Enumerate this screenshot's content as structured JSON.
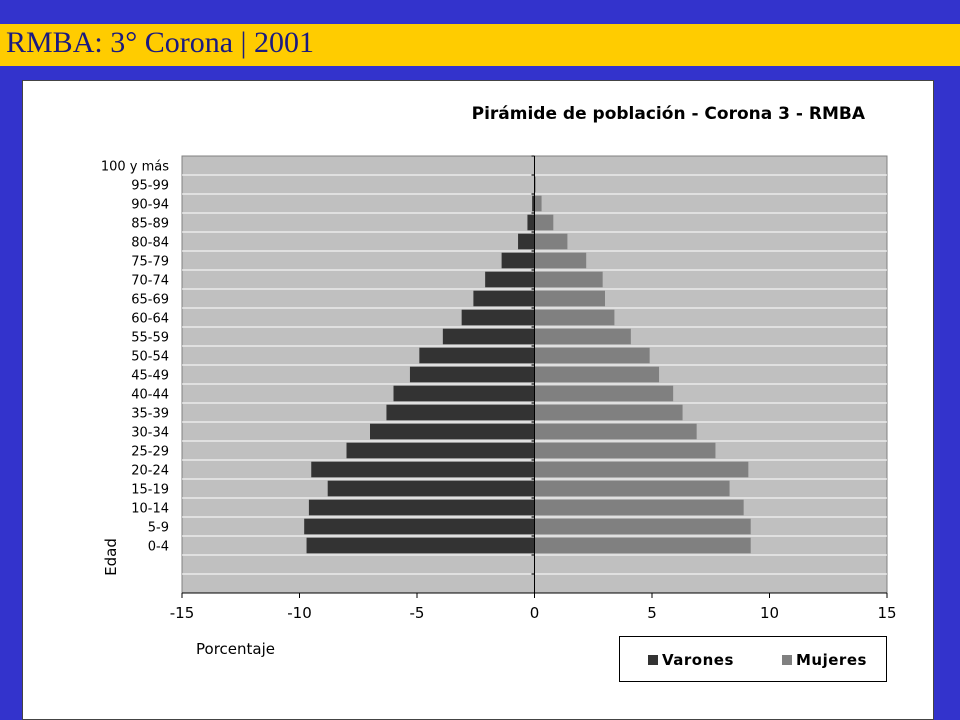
{
  "slide": {
    "title": "RMBA: 3° Corona | 2001"
  },
  "chart_data": {
    "type": "bar",
    "orientation": "horizontal",
    "title": "Pirámide de población - Corona 3 - RMBA",
    "xlabel": "Porcentaje",
    "ylabel": "Edad",
    "xlim": [
      -15,
      15
    ],
    "xticks": [
      -15,
      -10,
      -5,
      0,
      5,
      10,
      15
    ],
    "grid": true,
    "legend": "bottom-right",
    "categories": [
      "0-4",
      "5-9",
      "10-14",
      "15-19",
      "20-24",
      "25-29",
      "30-34",
      "35-39",
      "40-44",
      "45-49",
      "50-54",
      "55-59",
      "60-64",
      "65-69",
      "70-74",
      "75-79",
      "80-84",
      "85-89",
      "90-94",
      "95-99",
      "100 y más"
    ],
    "series": [
      {
        "name": "Varones",
        "color": "#333333",
        "values": [
          -9.7,
          -9.8,
          -9.6,
          -8.8,
          -9.5,
          -8.0,
          -7.0,
          -6.3,
          -6.0,
          -5.3,
          -4.9,
          -3.9,
          -3.1,
          -2.6,
          -2.1,
          -1.4,
          -0.7,
          -0.3,
          -0.1,
          -0.02,
          0
        ]
      },
      {
        "name": "Mujeres",
        "color": "#808080",
        "values": [
          9.2,
          9.2,
          8.9,
          8.3,
          9.1,
          7.7,
          6.9,
          6.3,
          5.9,
          5.3,
          4.9,
          4.1,
          3.4,
          3.0,
          2.9,
          2.2,
          1.4,
          0.8,
          0.3,
          0.05,
          0
        ]
      }
    ]
  }
}
